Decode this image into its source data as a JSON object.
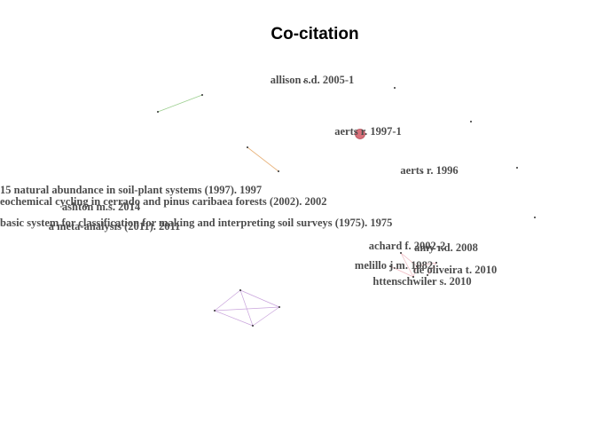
{
  "title": "Co-citation",
  "colors": {
    "label": "#4d4d4d",
    "node_default": "#333333",
    "node_highlight": "#d9707a",
    "edge_green": "#9ccf8f",
    "edge_orange": "#e8b27a",
    "edge_purple": "#c9a4dc",
    "edge_pink": "#f0b8c0"
  },
  "nodes": {
    "allison": "allison s.d. 2005-1",
    "aerts1997": "aerts r. 1997-1",
    "aerts1996": "aerts r. 1996",
    "n15": "15 natural abundance in soil-plant systems (1997). 1997",
    "cerrado": "eochemical cycling in cerrado and pinus caribaea forests (2002). 2002",
    "ashton": "ashton m.s. 2014",
    "basic": " basic system for classification for making and interpreting soil surveys (1975). 1975",
    "meta": "a meta-analysis (2011). 2011",
    "achard": "achard f. 2002-2",
    "amy": "amy r.d. 2008",
    "melillo": "melillo j.m. 1982",
    "oliveira": "de oliveira t. 2010",
    "hattenschwiler": "httenschwiler s. 2010"
  }
}
